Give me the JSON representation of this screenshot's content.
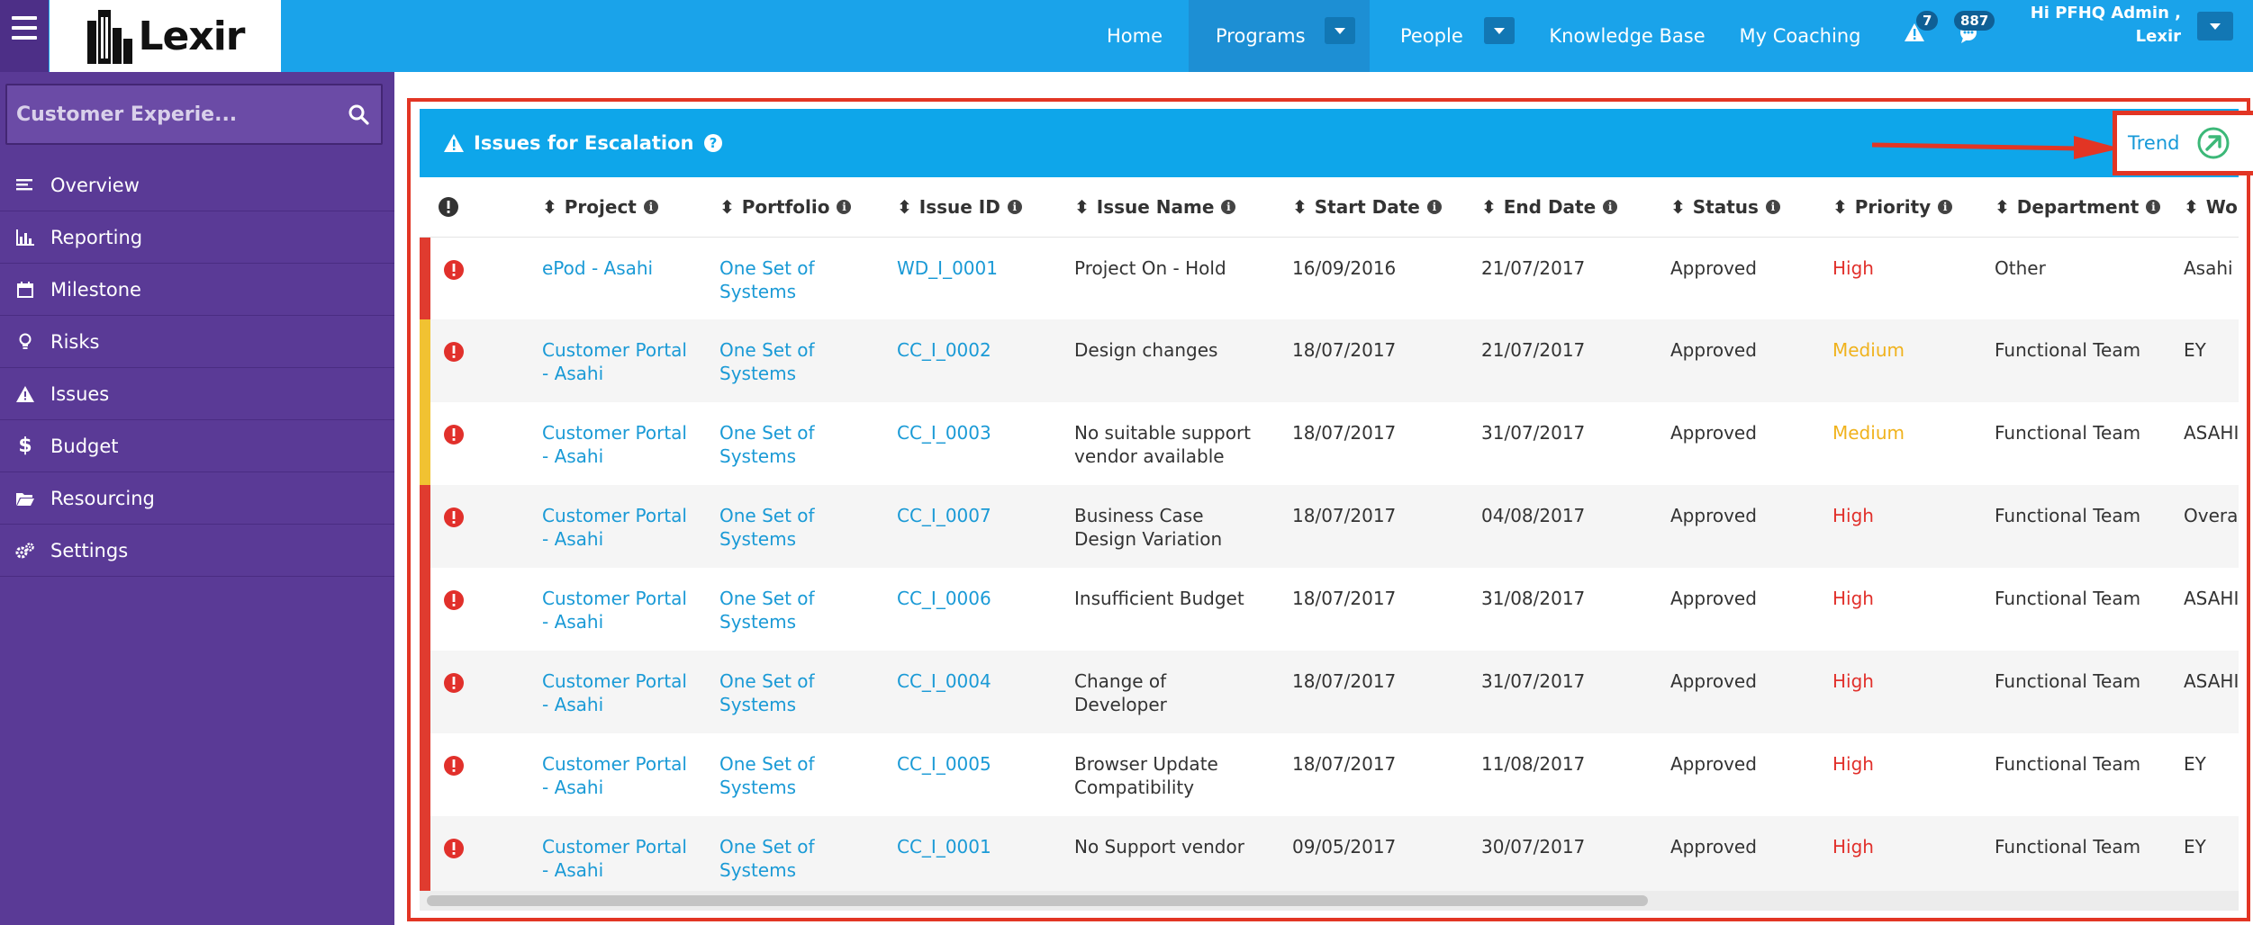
{
  "app": {
    "logo_text": "Lexir"
  },
  "nav": {
    "items": [
      {
        "label": "Home",
        "active": false
      },
      {
        "label": "Programs",
        "active": true,
        "has_dropdown": true
      },
      {
        "label": "People",
        "active": false,
        "has_dropdown": true
      },
      {
        "label": "Knowledge Base",
        "active": false
      },
      {
        "label": "My Coaching",
        "active": false
      }
    ],
    "alerts_count": "7",
    "messages_count": "887",
    "user_greeting_line1": "Hi PFHQ Admin ,",
    "user_greeting_line2": "Lexir"
  },
  "sidebar": {
    "search_value": "Customer Experie...",
    "items": [
      {
        "label": "Overview",
        "icon": "list-icon"
      },
      {
        "label": "Reporting",
        "icon": "bar-chart-icon"
      },
      {
        "label": "Milestone",
        "icon": "calendar-icon"
      },
      {
        "label": "Risks",
        "icon": "lightbulb-icon"
      },
      {
        "label": "Issues",
        "icon": "warning-icon"
      },
      {
        "label": "Budget",
        "icon": "dollar-icon"
      },
      {
        "label": "Resourcing",
        "icon": "folder-icon"
      },
      {
        "label": "Settings",
        "icon": "gears-icon"
      }
    ]
  },
  "panel": {
    "title": "Issues for Escalation",
    "trend_label": "Trend"
  },
  "table": {
    "columns": [
      "Project",
      "Portfolio",
      "Issue ID",
      "Issue Name",
      "Start Date",
      "End Date",
      "Status",
      "Priority",
      "Department",
      "Wor"
    ],
    "rows": [
      {
        "flag_color": "#e03b2f",
        "project": "ePod - Asahi",
        "portfolio": "One Set of Systems",
        "issue_id": "WD_I_0001",
        "issue_name": "Project On - Hold",
        "start": "16/09/2016",
        "end": "21/07/2017",
        "status": "Approved",
        "priority": "High",
        "department": "Other",
        "wor": "Asahi"
      },
      {
        "flag_color": "#f1c232",
        "project": "Customer Portal - Asahi",
        "portfolio": "One Set of Systems",
        "issue_id": "CC_I_0002",
        "issue_name": "Design changes",
        "start": "18/07/2017",
        "end": "21/07/2017",
        "status": "Approved",
        "priority": "Medium",
        "department": "Functional Team",
        "wor": "EY"
      },
      {
        "flag_color": "#f1c232",
        "project": "Customer Portal - Asahi",
        "portfolio": "One Set of Systems",
        "issue_id": "CC_I_0003",
        "issue_name": "No suitable support vendor available",
        "start": "18/07/2017",
        "end": "31/07/2017",
        "status": "Approved",
        "priority": "Medium",
        "department": "Functional Team",
        "wor": "ASAHI"
      },
      {
        "flag_color": "#e03b2f",
        "project": "Customer Portal - Asahi",
        "portfolio": "One Set of Systems",
        "issue_id": "CC_I_0007",
        "issue_name": "Business Case Design Variation",
        "start": "18/07/2017",
        "end": "04/08/2017",
        "status": "Approved",
        "priority": "High",
        "department": "Functional Team",
        "wor": "Overal"
      },
      {
        "flag_color": "#e03b2f",
        "project": "Customer Portal - Asahi",
        "portfolio": "One Set of Systems",
        "issue_id": "CC_I_0006",
        "issue_name": "Insufficient Budget",
        "start": "18/07/2017",
        "end": "31/08/2017",
        "status": "Approved",
        "priority": "High",
        "department": "Functional Team",
        "wor": "ASAHI"
      },
      {
        "flag_color": "#e03b2f",
        "project": "Customer Portal - Asahi",
        "portfolio": "One Set of Systems",
        "issue_id": "CC_I_0004",
        "issue_name": "Change of Developer",
        "start": "18/07/2017",
        "end": "31/07/2017",
        "status": "Approved",
        "priority": "High",
        "department": "Functional Team",
        "wor": "ASAHI"
      },
      {
        "flag_color": "#e03b2f",
        "project": "Customer Portal - Asahi",
        "portfolio": "One Set of Systems",
        "issue_id": "CC_I_0005",
        "issue_name": "Browser Update Compatibility",
        "start": "18/07/2017",
        "end": "11/08/2017",
        "status": "Approved",
        "priority": "High",
        "department": "Functional Team",
        "wor": "EY"
      },
      {
        "flag_color": "#e03b2f",
        "project": "Customer Portal - Asahi",
        "portfolio": "One Set of Systems",
        "issue_id": "CC_I_0001",
        "issue_name": "No Support vendor",
        "start": "09/05/2017",
        "end": "30/07/2017",
        "status": "Approved",
        "priority": "High",
        "department": "Functional Team",
        "wor": "EY"
      }
    ]
  },
  "colors": {
    "topbar": "#1aa3ea",
    "sidebar": "#5a3a96",
    "accent_link": "#1a9ad6",
    "priority_high": "#e1302b",
    "priority_medium": "#f0b21c",
    "highlight_red": "#e23524"
  }
}
